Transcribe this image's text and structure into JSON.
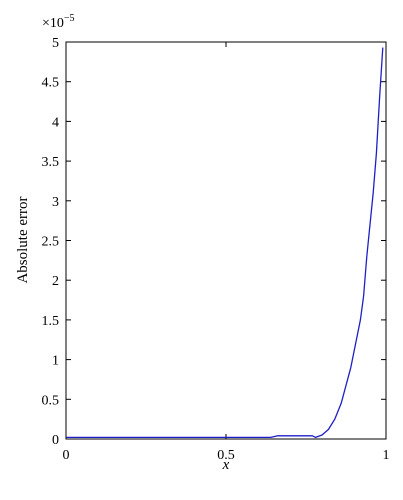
{
  "chart_data": {
    "type": "line",
    "xlabel": "x",
    "ylabel": "Absolute error",
    "y_exponent_base": "×10",
    "y_exponent_power": "−5",
    "xlim": [
      0,
      1
    ],
    "ylim": [
      0,
      5
    ],
    "x_ticks": [
      0,
      0.5,
      1
    ],
    "x_tick_labels": [
      "0",
      "0.5",
      "1"
    ],
    "y_ticks": [
      0,
      0.5,
      1,
      1.5,
      2,
      2.5,
      3,
      3.5,
      4,
      4.5,
      5
    ],
    "y_tick_labels": [
      "0",
      "0.5",
      "1",
      "1.5",
      "2",
      "2.5",
      "3",
      "3.5",
      "4",
      "4.5",
      "5"
    ],
    "grid": false,
    "series": [
      {
        "color": "#1f1fc8",
        "x": [
          0,
          0.1,
          0.2,
          0.3,
          0.4,
          0.5,
          0.6,
          0.64,
          0.66,
          0.7,
          0.75,
          0.77,
          0.78,
          0.8,
          0.82,
          0.84,
          0.86,
          0.88,
          0.89,
          0.9,
          0.91,
          0.92,
          0.93,
          0.94,
          0.95,
          0.96,
          0.97,
          0.98,
          0.99
        ],
        "y": [
          0.02,
          0.02,
          0.02,
          0.02,
          0.02,
          0.02,
          0.02,
          0.02,
          0.04,
          0.04,
          0.04,
          0.04,
          0.02,
          0.05,
          0.12,
          0.25,
          0.45,
          0.75,
          0.9,
          1.1,
          1.3,
          1.5,
          1.8,
          2.3,
          2.7,
          3.1,
          3.6,
          4.3,
          4.93
        ]
      }
    ]
  }
}
